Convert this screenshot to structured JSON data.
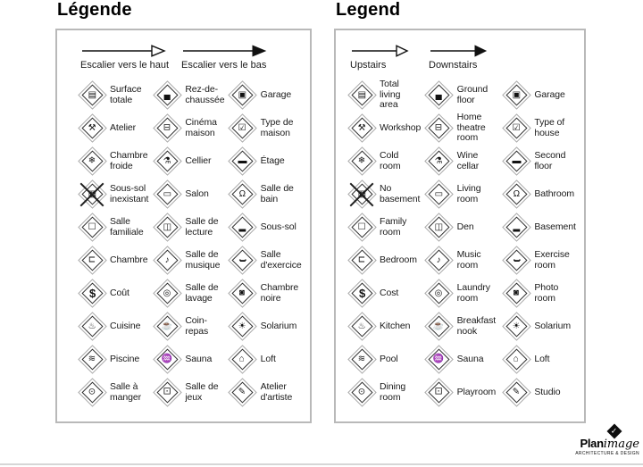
{
  "panels": [
    {
      "id": "fr",
      "title": "Légende",
      "arrows": [
        {
          "label": "Escalier vers le haut",
          "style": "open"
        },
        {
          "label": "Escalier vers le bas",
          "style": "filled"
        }
      ],
      "items": [
        {
          "label": "Surface\ntotale",
          "icon": "layers-icon",
          "glyph": "▤"
        },
        {
          "label": "Rez-de-\nchaussée",
          "icon": "ground-floor-icon",
          "glyph": "▄"
        },
        {
          "label": "Garage",
          "icon": "garage-door-icon",
          "glyph": "▣"
        },
        {
          "label": "Atelier",
          "icon": "hammer-icon",
          "glyph": "⚒"
        },
        {
          "label": "Cinéma\nmaison",
          "icon": "projector-icon",
          "glyph": "⊟"
        },
        {
          "label": "Type de\nmaison",
          "icon": "checklist-icon",
          "glyph": "☑"
        },
        {
          "label": "Chambre\nfroide",
          "icon": "thermometer-icon",
          "glyph": "❄"
        },
        {
          "label": "Cellier",
          "icon": "wine-bottle-icon",
          "glyph": "⚗"
        },
        {
          "label": "Étage",
          "icon": "floor-level-icon",
          "glyph": "▬"
        },
        {
          "label": "Sous-sol\ninexistant",
          "icon": "no-basement-icon",
          "glyph": "▦"
        },
        {
          "label": "Salon",
          "icon": "couch-icon",
          "glyph": "▭"
        },
        {
          "label": "Salle de\nbain",
          "icon": "toilet-icon",
          "glyph": "Ω"
        },
        {
          "label": "Salle\nfamiliale",
          "icon": "tv-icon",
          "glyph": "☐"
        },
        {
          "label": "Salle de\nlecture",
          "icon": "open-book-icon",
          "glyph": "◫"
        },
        {
          "label": "Sous-sol",
          "icon": "basement-icon",
          "glyph": "▂"
        },
        {
          "label": "Chambre",
          "icon": "bed-icon",
          "glyph": "⊏"
        },
        {
          "label": "Salle de\nmusique",
          "icon": "music-note-icon",
          "glyph": "♪"
        },
        {
          "label": "Salle\nd'exercice",
          "icon": "dumbbell-icon",
          "glyph": "▪▬▪"
        },
        {
          "label": "Coût",
          "icon": "dollar-icon",
          "glyph": "$"
        },
        {
          "label": "Salle de\nlavage",
          "icon": "washer-icon",
          "glyph": "◎"
        },
        {
          "label": "Chambre\nnoire",
          "icon": "camera-icon",
          "glyph": "◙"
        },
        {
          "label": "Cuisine",
          "icon": "cooking-pot-icon",
          "glyph": "♨"
        },
        {
          "label": "Coin-\nrepas",
          "icon": "coffee-cup-icon",
          "glyph": "☕"
        },
        {
          "label": "Solarium",
          "icon": "sun-icon",
          "glyph": "☀"
        },
        {
          "label": "Piscine",
          "icon": "swimmer-icon",
          "glyph": "≋"
        },
        {
          "label": "Sauna",
          "icon": "sauna-icon",
          "glyph": "♒"
        },
        {
          "label": "Loft",
          "icon": "loft-house-icon",
          "glyph": "⌂"
        },
        {
          "label": "Salle à\nmanger",
          "icon": "dining-plate-icon",
          "glyph": "⊙"
        },
        {
          "label": "Salle de\njeux",
          "icon": "game-die-icon",
          "glyph": "⚀"
        },
        {
          "label": "Atelier\nd'artiste",
          "icon": "artist-palette-icon",
          "glyph": "✎"
        }
      ]
    },
    {
      "id": "en",
      "title": "Legend",
      "arrows": [
        {
          "label": "Upstairs",
          "style": "open"
        },
        {
          "label": "Downstairs",
          "style": "filled"
        }
      ],
      "items": [
        {
          "label": "Total\nliving\narea",
          "icon": "layers-icon",
          "glyph": "▤"
        },
        {
          "label": "Ground\nfloor",
          "icon": "ground-floor-icon",
          "glyph": "▄"
        },
        {
          "label": "Garage",
          "icon": "garage-door-icon",
          "glyph": "▣"
        },
        {
          "label": "Workshop",
          "icon": "hammer-icon",
          "glyph": "⚒"
        },
        {
          "label": "Home\ntheatre\nroom",
          "icon": "projector-icon",
          "glyph": "⊟"
        },
        {
          "label": "Type of\nhouse",
          "icon": "checklist-icon",
          "glyph": "☑"
        },
        {
          "label": "Cold\nroom",
          "icon": "thermometer-icon",
          "glyph": "❄"
        },
        {
          "label": "Wine\ncellar",
          "icon": "wine-bottle-icon",
          "glyph": "⚗"
        },
        {
          "label": "Second\nfloor",
          "icon": "floor-level-icon",
          "glyph": "▬"
        },
        {
          "label": "No\nbasement",
          "icon": "no-basement-icon",
          "glyph": "▦"
        },
        {
          "label": "Living\nroom",
          "icon": "couch-icon",
          "glyph": "▭"
        },
        {
          "label": "Bathroom",
          "icon": "toilet-icon",
          "glyph": "Ω"
        },
        {
          "label": "Family\nroom",
          "icon": "tv-icon",
          "glyph": "☐"
        },
        {
          "label": "Den",
          "icon": "open-book-icon",
          "glyph": "◫"
        },
        {
          "label": "Basement",
          "icon": "basement-icon",
          "glyph": "▂"
        },
        {
          "label": "Bedroom",
          "icon": "bed-icon",
          "glyph": "⊏"
        },
        {
          "label": "Music\nroom",
          "icon": "music-note-icon",
          "glyph": "♪"
        },
        {
          "label": "Exercise\nroom",
          "icon": "dumbbell-icon",
          "glyph": "▪▬▪"
        },
        {
          "label": "Cost",
          "icon": "dollar-icon",
          "glyph": "$"
        },
        {
          "label": "Laundry\nroom",
          "icon": "washer-icon",
          "glyph": "◎"
        },
        {
          "label": "Photo\nroom",
          "icon": "camera-icon",
          "glyph": "◙"
        },
        {
          "label": "Kitchen",
          "icon": "cooking-pot-icon",
          "glyph": "♨"
        },
        {
          "label": "Breakfast\nnook",
          "icon": "coffee-cup-icon",
          "glyph": "☕"
        },
        {
          "label": "Solarium",
          "icon": "sun-icon",
          "glyph": "☀"
        },
        {
          "label": "Pool",
          "icon": "swimmer-icon",
          "glyph": "≋"
        },
        {
          "label": "Sauna",
          "icon": "sauna-icon",
          "glyph": "♒"
        },
        {
          "label": "Loft",
          "icon": "loft-house-icon",
          "glyph": "⌂"
        },
        {
          "label": "Dining\nroom",
          "icon": "dining-plate-icon",
          "glyph": "⊙"
        },
        {
          "label": "Playroom",
          "icon": "game-die-icon",
          "glyph": "⚀"
        },
        {
          "label": "Studio",
          "icon": "artist-palette-icon",
          "glyph": "✎"
        }
      ]
    }
  ],
  "logo": {
    "wordmark_plan": "Plan",
    "wordmark_image": "image",
    "subtext": "ARCHITECTURE & DESIGN",
    "check": "✓"
  },
  "colors": {
    "panel_border": "#b9b9b9",
    "diamond_inner": "#2e2e2e",
    "diamond_outer": "#a9a9a9",
    "text": "#1a1a1a",
    "bottom_rule": "#d6d6d6"
  }
}
